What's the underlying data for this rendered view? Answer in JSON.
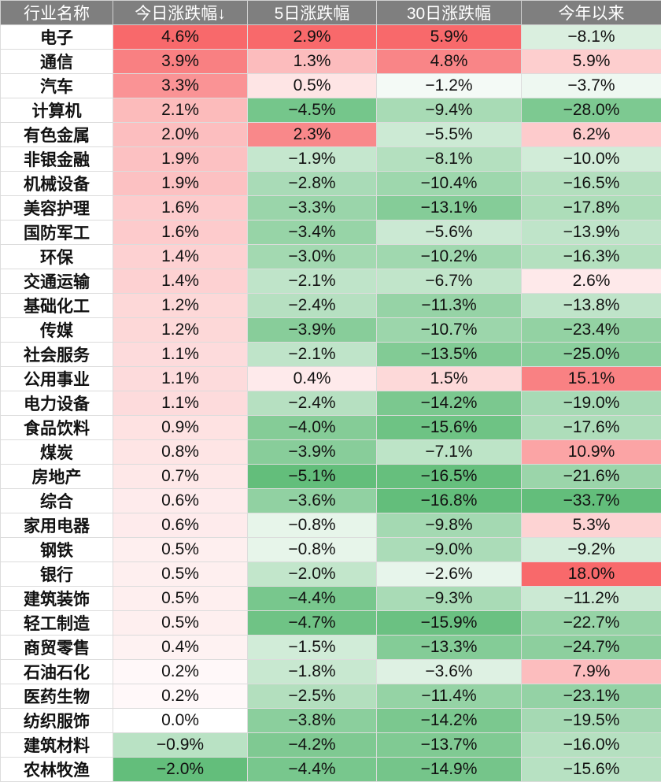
{
  "table": {
    "headers": [
      "行业名称",
      "今日涨跌幅↓",
      "5日涨跌幅",
      "30日涨跌幅",
      "今年以来"
    ],
    "rows": [
      {
        "name": "电子",
        "values": [
          "4.6%",
          "2.9%",
          "5.9%",
          "−8.1%"
        ],
        "nums": [
          4.6,
          2.9,
          5.9,
          -8.1
        ]
      },
      {
        "name": "通信",
        "values": [
          "3.9%",
          "1.3%",
          "4.8%",
          "5.9%"
        ],
        "nums": [
          3.9,
          1.3,
          4.8,
          5.9
        ]
      },
      {
        "name": "汽车",
        "values": [
          "3.3%",
          "0.5%",
          "−1.2%",
          "−3.7%"
        ],
        "nums": [
          3.3,
          0.5,
          -1.2,
          -3.7
        ]
      },
      {
        "name": "计算机",
        "values": [
          "2.1%",
          "−4.5%",
          "−9.4%",
          "−28.0%"
        ],
        "nums": [
          2.1,
          -4.5,
          -9.4,
          -28.0
        ]
      },
      {
        "name": "有色金属",
        "values": [
          "2.0%",
          "2.3%",
          "−5.5%",
          "6.2%"
        ],
        "nums": [
          2.0,
          2.3,
          -5.5,
          6.2
        ]
      },
      {
        "name": "非银金融",
        "values": [
          "1.9%",
          "−1.9%",
          "−8.1%",
          "−10.0%"
        ],
        "nums": [
          1.9,
          -1.9,
          -8.1,
          -10.0
        ]
      },
      {
        "name": "机械设备",
        "values": [
          "1.9%",
          "−2.8%",
          "−10.4%",
          "−16.5%"
        ],
        "nums": [
          1.9,
          -2.8,
          -10.4,
          -16.5
        ]
      },
      {
        "name": "美容护理",
        "values": [
          "1.6%",
          "−3.3%",
          "−13.1%",
          "−17.8%"
        ],
        "nums": [
          1.6,
          -3.3,
          -13.1,
          -17.8
        ]
      },
      {
        "name": "国防军工",
        "values": [
          "1.6%",
          "−3.4%",
          "−5.6%",
          "−13.9%"
        ],
        "nums": [
          1.6,
          -3.4,
          -5.6,
          -13.9
        ]
      },
      {
        "name": "环保",
        "values": [
          "1.4%",
          "−3.0%",
          "−10.2%",
          "−16.3%"
        ],
        "nums": [
          1.4,
          -3.0,
          -10.2,
          -16.3
        ]
      },
      {
        "name": "交通运输",
        "values": [
          "1.4%",
          "−2.1%",
          "−6.7%",
          "2.6%"
        ],
        "nums": [
          1.4,
          -2.1,
          -6.7,
          2.6
        ]
      },
      {
        "name": "基础化工",
        "values": [
          "1.2%",
          "−2.4%",
          "−11.3%",
          "−13.8%"
        ],
        "nums": [
          1.2,
          -2.4,
          -11.3,
          -13.8
        ]
      },
      {
        "name": "传媒",
        "values": [
          "1.2%",
          "−3.9%",
          "−10.7%",
          "−23.4%"
        ],
        "nums": [
          1.2,
          -3.9,
          -10.7,
          -23.4
        ]
      },
      {
        "name": "社会服务",
        "values": [
          "1.1%",
          "−2.1%",
          "−13.5%",
          "−25.0%"
        ],
        "nums": [
          1.1,
          -2.1,
          -13.5,
          -25.0
        ]
      },
      {
        "name": "公用事业",
        "values": [
          "1.1%",
          "0.4%",
          "1.5%",
          "15.1%"
        ],
        "nums": [
          1.1,
          0.4,
          1.5,
          15.1
        ]
      },
      {
        "name": "电力设备",
        "values": [
          "1.1%",
          "−2.4%",
          "−14.2%",
          "−19.0%"
        ],
        "nums": [
          1.1,
          -2.4,
          -14.2,
          -19.0
        ]
      },
      {
        "name": "食品饮料",
        "values": [
          "0.9%",
          "−4.0%",
          "−15.6%",
          "−17.6%"
        ],
        "nums": [
          0.9,
          -4.0,
          -15.6,
          -17.6
        ]
      },
      {
        "name": "煤炭",
        "values": [
          "0.8%",
          "−3.9%",
          "−7.1%",
          "10.9%"
        ],
        "nums": [
          0.8,
          -3.9,
          -7.1,
          10.9
        ]
      },
      {
        "name": "房地产",
        "values": [
          "0.7%",
          "−5.1%",
          "−16.5%",
          "−21.6%"
        ],
        "nums": [
          0.7,
          -5.1,
          -16.5,
          -21.6
        ]
      },
      {
        "name": "综合",
        "values": [
          "0.6%",
          "−3.6%",
          "−16.8%",
          "−33.7%"
        ],
        "nums": [
          0.6,
          -3.6,
          -16.8,
          -33.7
        ]
      },
      {
        "name": "家用电器",
        "values": [
          "0.6%",
          "−0.8%",
          "−9.8%",
          "5.3%"
        ],
        "nums": [
          0.6,
          -0.8,
          -9.8,
          5.3
        ]
      },
      {
        "name": "钢铁",
        "values": [
          "0.5%",
          "−0.8%",
          "−9.0%",
          "−9.2%"
        ],
        "nums": [
          0.5,
          -0.8,
          -9.0,
          -9.2
        ]
      },
      {
        "name": "银行",
        "values": [
          "0.5%",
          "−2.0%",
          "−2.6%",
          "18.0%"
        ],
        "nums": [
          0.5,
          -2.0,
          -2.6,
          18.0
        ]
      },
      {
        "name": "建筑装饰",
        "values": [
          "0.5%",
          "−4.4%",
          "−9.3%",
          "−11.2%"
        ],
        "nums": [
          0.5,
          -4.4,
          -9.3,
          -11.2
        ]
      },
      {
        "name": "轻工制造",
        "values": [
          "0.5%",
          "−4.7%",
          "−15.9%",
          "−22.7%"
        ],
        "nums": [
          0.5,
          -4.7,
          -15.9,
          -22.7
        ]
      },
      {
        "name": "商贸零售",
        "values": [
          "0.4%",
          "−1.5%",
          "−13.3%",
          "−24.7%"
        ],
        "nums": [
          0.4,
          -1.5,
          -13.3,
          -24.7
        ]
      },
      {
        "name": "石油石化",
        "values": [
          "0.2%",
          "−1.8%",
          "−3.6%",
          "7.9%"
        ],
        "nums": [
          0.2,
          -1.8,
          -3.6,
          7.9
        ]
      },
      {
        "name": "医药生物",
        "values": [
          "0.2%",
          "−2.5%",
          "−11.4%",
          "−23.1%"
        ],
        "nums": [
          0.2,
          -2.5,
          -11.4,
          -23.1
        ]
      },
      {
        "name": "纺织服饰",
        "values": [
          "0.0%",
          "−3.8%",
          "−14.2%",
          "−19.5%"
        ],
        "nums": [
          0.0,
          -3.8,
          -14.2,
          -19.5
        ]
      },
      {
        "name": "建筑材料",
        "values": [
          "−0.9%",
          "−4.2%",
          "−13.7%",
          "−16.0%"
        ],
        "nums": [
          -0.9,
          -4.2,
          -13.7,
          -16.0
        ]
      },
      {
        "name": "农林牧渔",
        "values": [
          "−2.0%",
          "−4.4%",
          "−14.9%",
          "−15.6%"
        ],
        "nums": [
          -2.0,
          -4.4,
          -14.9,
          -15.6
        ]
      }
    ]
  },
  "colors": {
    "header_bg": "#7f7f7f",
    "header_text": "#ffffff",
    "positive": "#f8696b",
    "negative": "#63be7b",
    "neutral": "#ffffff"
  }
}
